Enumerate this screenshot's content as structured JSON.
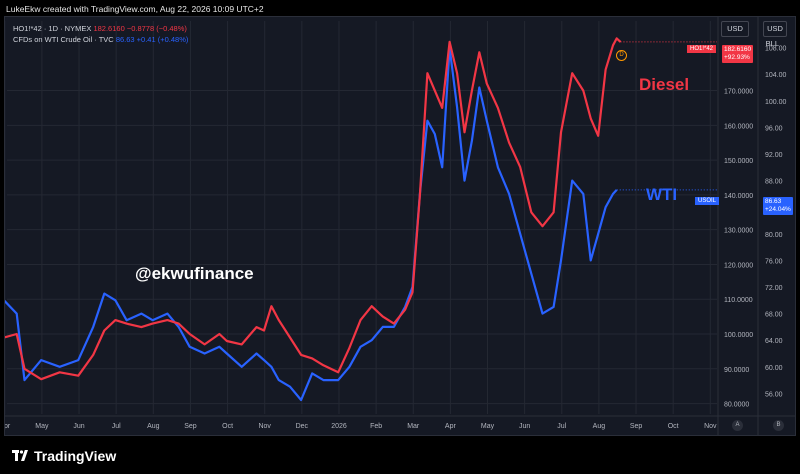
{
  "topbar": {
    "text": "LukeEkw created with TradingView.com, Aug 22, 2026 10:09 UTC+2"
  },
  "legend": {
    "line1_name": "HO1!*42 · 1D · NYMEX",
    "line1_values": "182.6160  −0.8778 (−0.48%)",
    "line2_name": "CFDs on WTI Crude Oil · TVC",
    "line2_values": "86.63  +0.41 (+0.48%)"
  },
  "currency": {
    "left": "USD",
    "right": "USD",
    "unit": "BLL"
  },
  "labels": {
    "diesel": "Diesel",
    "wti": "WTI",
    "watermark": "@ekwufinance",
    "d_marker": "D"
  },
  "price_tags": {
    "diesel_symbol": "HO1!*42",
    "diesel_price": "182.6160",
    "diesel_change": "+92.93%",
    "wti_symbol": "USOIL",
    "wti_price": "86.63",
    "wti_change": "+24.04%"
  },
  "colors": {
    "diesel": "#f23645",
    "wti": "#2962ff",
    "grid": "#242833",
    "bg": "#151924"
  },
  "footer": {
    "brand": "TradingView"
  },
  "icons": {
    "logo": "tradingview-logo-icon",
    "left_axis": "auto-scale-icon",
    "right_axis": "log-scale-icon"
  },
  "chart_data": {
    "type": "line",
    "x_ticks": [
      "Apr",
      "May",
      "Jun",
      "Jul",
      "Aug",
      "Sep",
      "Oct",
      "Nov",
      "Dec",
      "2026",
      "Feb",
      "Mar",
      "Apr",
      "May",
      "Jun",
      "Jul",
      "Aug",
      "Sep",
      "Oct",
      "Nov"
    ],
    "y_left_ticks": [
      "80.0000",
      "90.0000",
      "100.0000",
      "110.0000",
      "120.0000",
      "130.0000",
      "140.0000",
      "150.0000",
      "160.0000",
      "170.0000"
    ],
    "y_left_range": [
      77,
      190
    ],
    "y_right_ticks": [
      "56.00",
      "60.00",
      "64.00",
      "68.00",
      "72.00",
      "76.00",
      "80.00",
      "84.00",
      "88.00",
      "92.00",
      "96.00",
      "100.00",
      "104.00",
      "108.00"
    ],
    "y_right_range": [
      52.9,
      112
    ],
    "series": [
      {
        "name": "Diesel",
        "axis": "left",
        "points": [
          [
            0.0,
            99
          ],
          [
            0.34,
            100
          ],
          [
            0.55,
            90
          ],
          [
            1.0,
            87
          ],
          [
            1.5,
            89
          ],
          [
            2.0,
            88
          ],
          [
            2.4,
            94
          ],
          [
            2.7,
            101
          ],
          [
            3.0,
            104
          ],
          [
            3.3,
            103
          ],
          [
            3.7,
            102
          ],
          [
            4.0,
            103
          ],
          [
            4.4,
            104
          ],
          [
            4.7,
            103
          ],
          [
            5.0,
            100
          ],
          [
            5.4,
            97
          ],
          [
            5.8,
            100
          ],
          [
            6.0,
            98
          ],
          [
            6.4,
            97
          ],
          [
            6.8,
            102
          ],
          [
            7.0,
            101
          ],
          [
            7.2,
            108
          ],
          [
            7.4,
            104
          ],
          [
            7.7,
            99
          ],
          [
            8.0,
            94
          ],
          [
            8.3,
            93
          ],
          [
            8.6,
            91
          ],
          [
            9.0,
            89
          ],
          [
            9.3,
            96
          ],
          [
            9.6,
            104
          ],
          [
            9.9,
            108
          ],
          [
            10.2,
            105
          ],
          [
            10.5,
            103
          ],
          [
            10.8,
            107
          ],
          [
            11.0,
            112
          ],
          [
            11.2,
            140
          ],
          [
            11.4,
            175
          ],
          [
            11.6,
            170
          ],
          [
            11.8,
            165
          ],
          [
            12.0,
            184
          ],
          [
            12.2,
            175
          ],
          [
            12.4,
            158
          ],
          [
            12.6,
            170
          ],
          [
            12.8,
            181
          ],
          [
            13.0,
            172
          ],
          [
            13.3,
            165
          ],
          [
            13.6,
            155
          ],
          [
            13.9,
            148
          ],
          [
            14.2,
            135
          ],
          [
            14.5,
            131
          ],
          [
            14.8,
            135
          ],
          [
            15.0,
            158
          ],
          [
            15.3,
            175
          ],
          [
            15.6,
            170
          ],
          [
            15.8,
            162
          ],
          [
            16.0,
            157
          ],
          [
            16.2,
            176
          ],
          [
            16.4,
            183
          ],
          [
            16.5,
            185
          ],
          [
            16.6,
            184
          ]
        ]
      },
      {
        "name": "WTI",
        "axis": "right",
        "points": [
          [
            0.0,
            70
          ],
          [
            0.34,
            68
          ],
          [
            0.55,
            58
          ],
          [
            1.0,
            61
          ],
          [
            1.5,
            60
          ],
          [
            2.0,
            61
          ],
          [
            2.4,
            66
          ],
          [
            2.7,
            71
          ],
          [
            3.0,
            70
          ],
          [
            3.3,
            67
          ],
          [
            3.7,
            68
          ],
          [
            4.0,
            67
          ],
          [
            4.4,
            68
          ],
          [
            4.7,
            66
          ],
          [
            5.0,
            63
          ],
          [
            5.4,
            62
          ],
          [
            5.8,
            63
          ],
          [
            6.0,
            62
          ],
          [
            6.4,
            60
          ],
          [
            6.8,
            62
          ],
          [
            7.0,
            61
          ],
          [
            7.2,
            60
          ],
          [
            7.4,
            58
          ],
          [
            7.7,
            57
          ],
          [
            8.0,
            55
          ],
          [
            8.3,
            59
          ],
          [
            8.6,
            58
          ],
          [
            9.0,
            58
          ],
          [
            9.3,
            60
          ],
          [
            9.6,
            63
          ],
          [
            9.9,
            64
          ],
          [
            10.2,
            66
          ],
          [
            10.5,
            66
          ],
          [
            10.8,
            69
          ],
          [
            11.0,
            72
          ],
          [
            11.2,
            86
          ],
          [
            11.4,
            97
          ],
          [
            11.6,
            95
          ],
          [
            11.8,
            90
          ],
          [
            12.0,
            108
          ],
          [
            12.2,
            99
          ],
          [
            12.4,
            88
          ],
          [
            12.6,
            94
          ],
          [
            12.8,
            102
          ],
          [
            13.0,
            97
          ],
          [
            13.3,
            90
          ],
          [
            13.6,
            86
          ],
          [
            13.9,
            80
          ],
          [
            14.2,
            74
          ],
          [
            14.5,
            68
          ],
          [
            14.8,
            69
          ],
          [
            15.0,
            76
          ],
          [
            15.3,
            88
          ],
          [
            15.6,
            86
          ],
          [
            15.8,
            76
          ],
          [
            16.0,
            80
          ],
          [
            16.2,
            84
          ],
          [
            16.4,
            86
          ],
          [
            16.5,
            86.6
          ]
        ]
      }
    ]
  }
}
